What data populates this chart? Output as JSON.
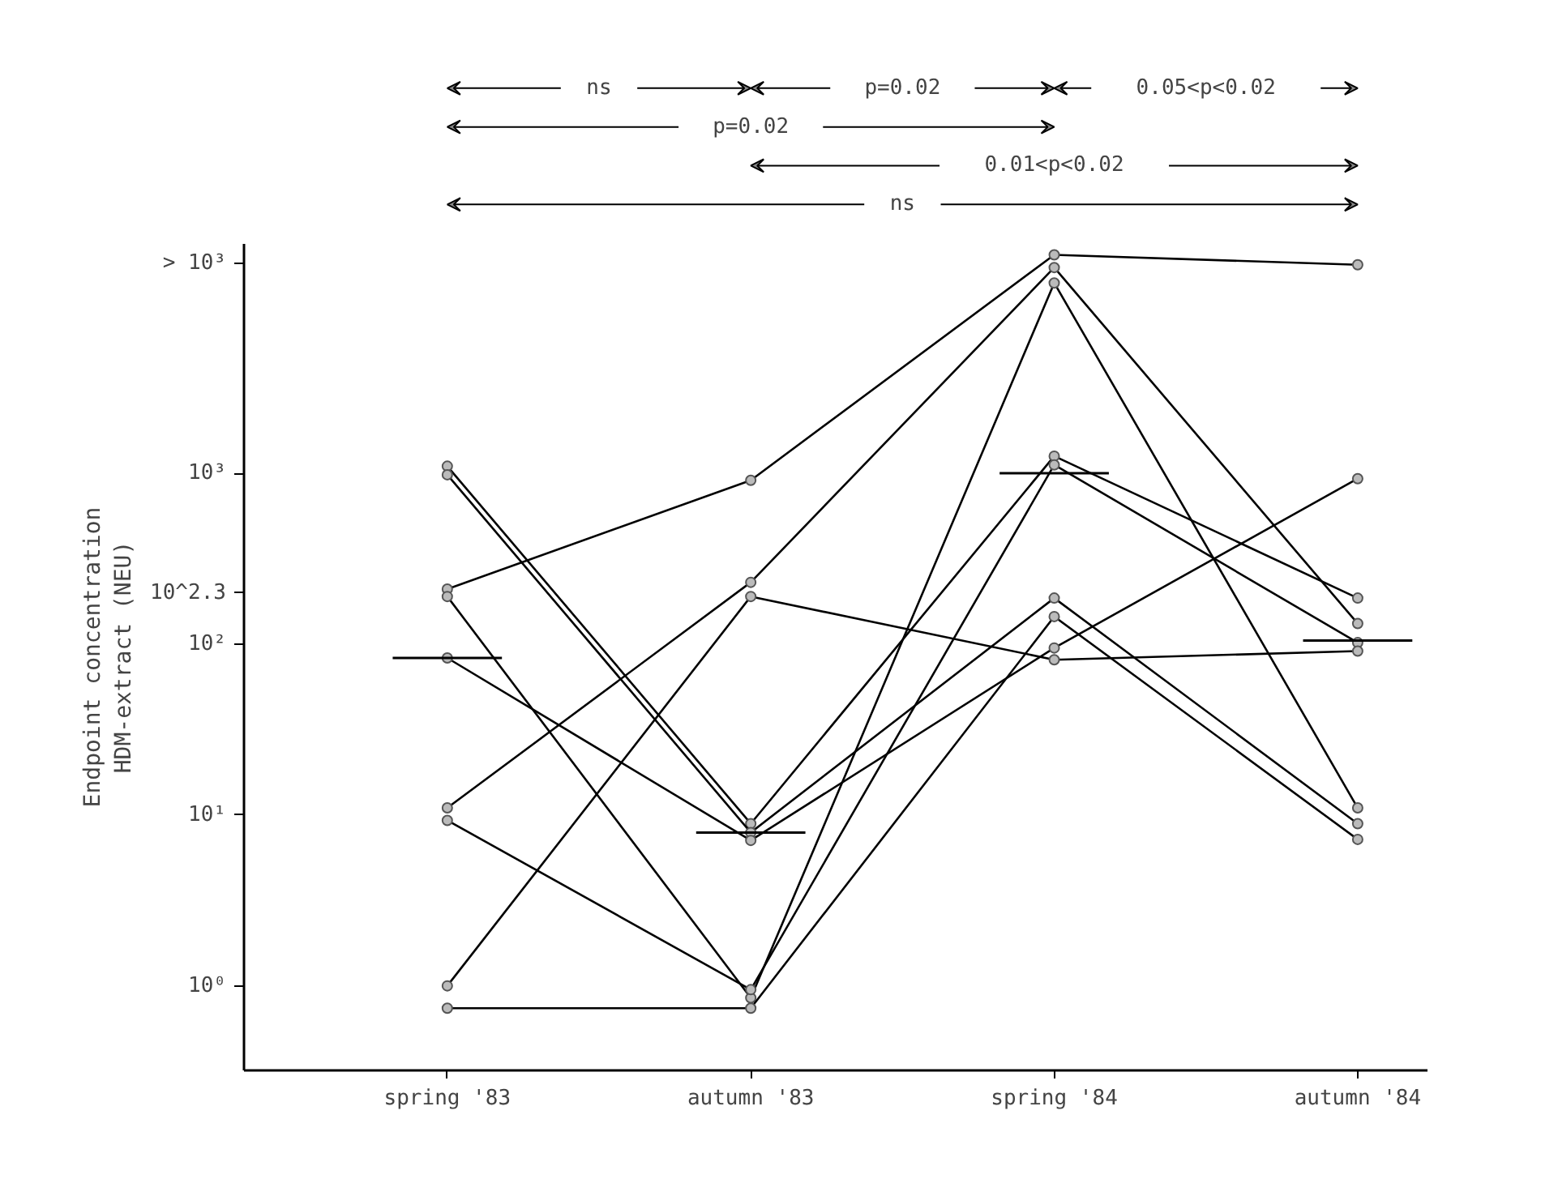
{
  "chart_data": {
    "type": "line",
    "ylabel": "Endpoint concentration\nHDM-extract (NEU)",
    "categories": [
      "spring '83",
      "autumn '83",
      "spring '84",
      "autumn '84"
    ],
    "log": "y",
    "ylim": [
      0.32,
      22000
    ],
    "yticks": [
      {
        "value": 1,
        "label": "10⁰"
      },
      {
        "value": 10,
        "label": "10¹"
      },
      {
        "value": 100,
        "label": "10²"
      },
      {
        "value": 199.5,
        "label": "10^2.3"
      },
      {
        "value": 1000,
        "label": "10³"
      },
      {
        "value": 17000,
        "label": "> 10³"
      }
    ],
    "grid": false,
    "marker": "circle",
    "line_style": "solid",
    "series": [
      {
        "color": "#000000",
        "values": [
          1100,
          8.9,
          1260,
          186
        ]
      },
      {
        "color": "#000000",
        "values": [
          980,
          7.9,
          186,
          8.9
        ]
      },
      {
        "color": "#000000",
        "values": [
          210,
          910,
          19000,
          16600
        ]
      },
      {
        "color": "#000000",
        "values": [
          190,
          0.85,
          13000,
          11
        ]
      },
      {
        "color": "#000000",
        "values": [
          83,
          7.1,
          95,
          930
        ]
      },
      {
        "color": "#000000",
        "values": [
          11,
          230,
          16000,
          132
        ]
      },
      {
        "color": "#000000",
        "values": [
          9.3,
          0.95,
          1120,
          102
        ]
      },
      {
        "color": "#000000",
        "values": [
          1.0,
          190,
          81,
          91
        ]
      },
      {
        "color": "#000000",
        "values": [
          0.74,
          0.74,
          145,
          7.2
        ]
      }
    ],
    "ref_lines": [
      {
        "axis": "y",
        "value": 83,
        "color": "#000000"
      },
      {
        "axis": "y",
        "value": 7.9,
        "color": "#000000"
      },
      {
        "axis": "y",
        "value": 1000,
        "color": "#000000"
      },
      {
        "axis": "y",
        "value": 105,
        "color": "#000000"
      }
    ],
    "annotations": [
      "ns",
      "p=0.02",
      "0.05<p<0.02",
      "p=0.02",
      "0.01<p<0.02",
      "ns"
    ]
  }
}
